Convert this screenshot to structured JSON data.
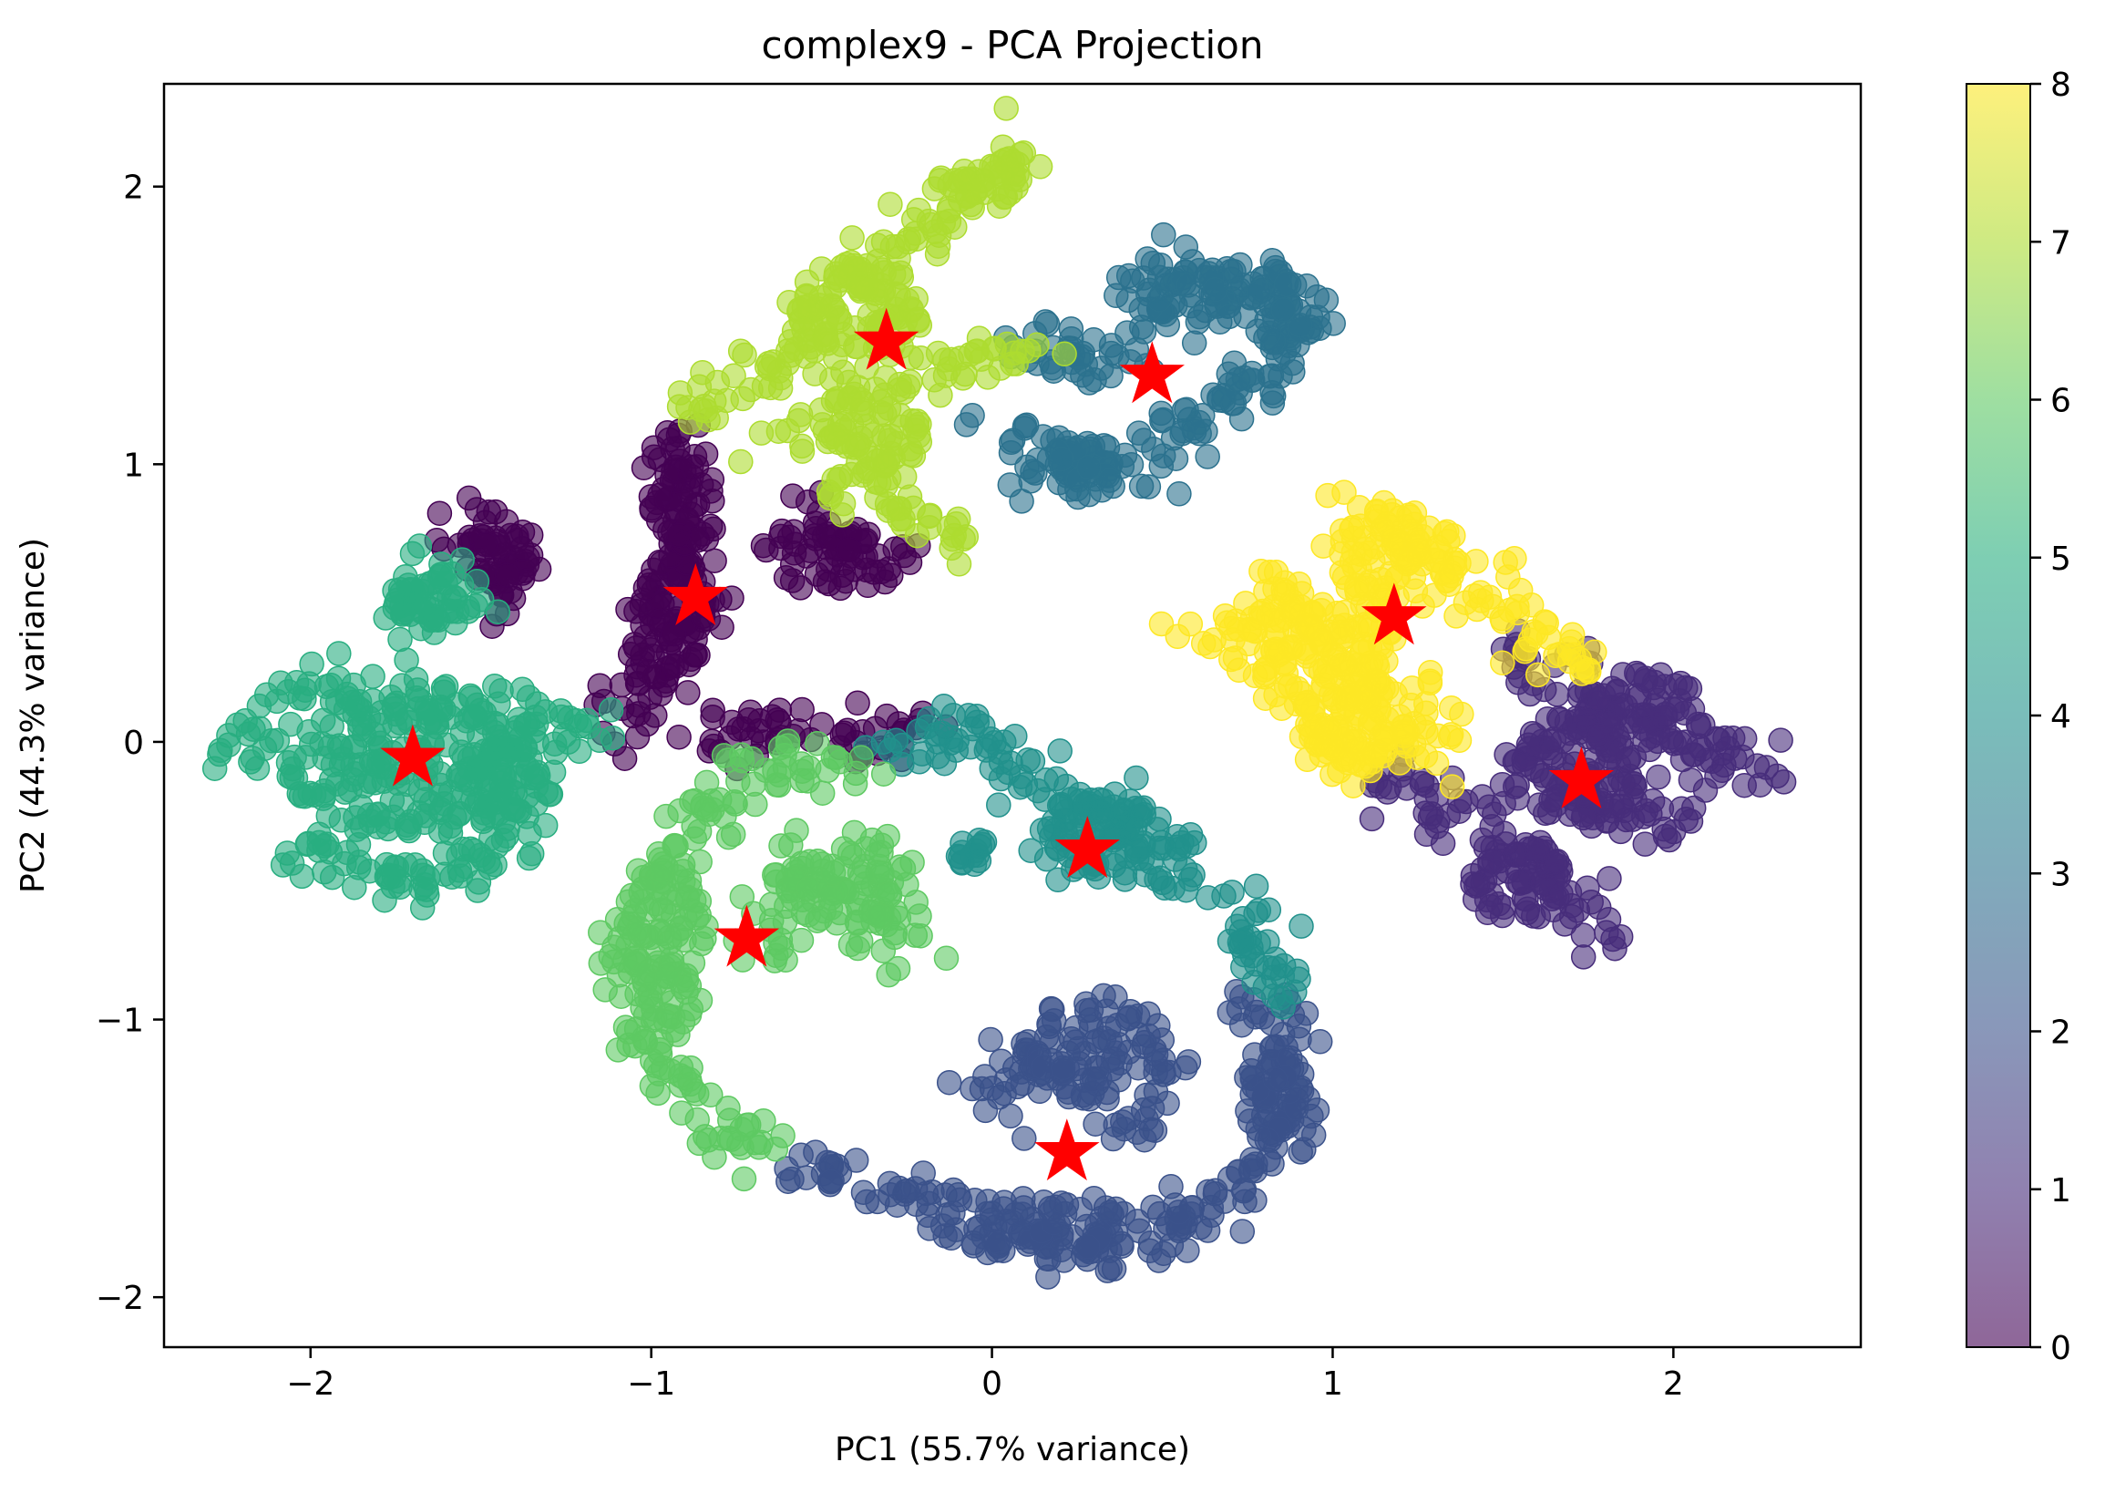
{
  "chart_data": {
    "type": "scatter",
    "title": "complex9 - PCA Projection",
    "xlabel": "PC1 (55.7% variance)",
    "ylabel": "PC2 (44.3% variance)",
    "xlim": [
      -2.43,
      2.55
    ],
    "ylim": [
      -2.18,
      2.37
    ],
    "xticks": [
      -2,
      -1,
      0,
      1,
      2
    ],
    "xtick_labels": [
      "−2",
      "−1",
      "0",
      "1",
      "2"
    ],
    "yticks": [
      -2,
      -1,
      0,
      1,
      2
    ],
    "ytick_labels": [
      "−2",
      "−1",
      "0",
      "1",
      "2"
    ],
    "grid": false,
    "legend": "none",
    "marker_alpha": 0.6,
    "colormap": "viridis",
    "colorbar": {
      "range": [
        0,
        8
      ],
      "ticks": [
        0,
        1,
        2,
        3,
        4,
        5,
        6,
        7,
        8
      ],
      "tick_labels": [
        "0",
        "1",
        "2",
        "3",
        "4",
        "5",
        "6",
        "7",
        "8"
      ],
      "colors": [
        "#440154",
        "#472d7b",
        "#3b528b",
        "#2c728e",
        "#21918c",
        "#28ae80",
        "#5ec962",
        "#addc30",
        "#fde725"
      ]
    },
    "clusters": [
      {
        "label": 0,
        "color": "#440154",
        "polylines": [
          [
            [
              -0.95,
              1.15
            ],
            [
              -0.9,
              0.95
            ],
            [
              -0.92,
              0.75
            ],
            [
              -0.88,
              0.55
            ],
            [
              -0.95,
              0.35
            ],
            [
              -1.05,
              0.15
            ],
            [
              -1.08,
              0.0
            ]
          ],
          [
            [
              -1.6,
              0.72
            ],
            [
              -1.5,
              0.78
            ],
            [
              -1.38,
              0.7
            ],
            [
              -1.4,
              0.55
            ],
            [
              -1.45,
              0.5
            ]
          ],
          [
            [
              -0.52,
              0.82
            ],
            [
              -0.55,
              0.7
            ],
            [
              -0.6,
              0.65
            ],
            [
              -0.5,
              0.62
            ],
            [
              -0.35,
              0.62
            ],
            [
              -0.2,
              0.66
            ]
          ],
          [
            [
              -0.85,
              -0.02
            ],
            [
              -0.7,
              0.02
            ],
            [
              -0.5,
              0.06
            ],
            [
              -0.3,
              0.04
            ],
            [
              -0.2,
              0.0
            ]
          ]
        ],
        "blobs": [
          [
            -0.95,
            0.45,
            0.12,
            0.25
          ],
          [
            -0.9,
            0.85,
            0.1,
            0.15
          ],
          [
            -1.45,
            0.66,
            0.1,
            0.1
          ],
          [
            -0.45,
            0.72,
            0.08,
            0.07
          ]
        ]
      },
      {
        "label": 1,
        "color": "#472d7b",
        "polylines": [
          [
            [
              1.12,
              -0.12
            ],
            [
              1.25,
              -0.2
            ],
            [
              1.4,
              -0.3
            ],
            [
              1.55,
              -0.4
            ],
            [
              1.7,
              -0.55
            ],
            [
              1.82,
              -0.68
            ]
          ],
          [
            [
              1.5,
              0.3
            ],
            [
              1.65,
              0.25
            ],
            [
              1.85,
              0.12
            ],
            [
              2.0,
              0.0
            ],
            [
              2.15,
              -0.12
            ],
            [
              2.3,
              -0.08
            ]
          ],
          [
            [
              1.6,
              -0.15
            ],
            [
              1.75,
              -0.22
            ],
            [
              1.9,
              -0.28
            ],
            [
              2.05,
              -0.3
            ]
          ]
        ],
        "blobs": [
          [
            1.7,
            -0.1,
            0.2,
            0.2
          ],
          [
            1.9,
            0.1,
            0.2,
            0.15
          ],
          [
            1.55,
            -0.5,
            0.15,
            0.15
          ]
        ]
      },
      {
        "label": 2,
        "color": "#3b528b",
        "polylines": [
          [
            [
              -0.55,
              -1.5
            ],
            [
              -0.35,
              -1.62
            ],
            [
              -0.1,
              -1.72
            ],
            [
              0.15,
              -1.8
            ],
            [
              0.4,
              -1.82
            ],
            [
              0.6,
              -1.72
            ],
            [
              0.78,
              -1.55
            ],
            [
              0.88,
              -1.3
            ],
            [
              0.86,
              -1.05
            ],
            [
              0.72,
              -0.92
            ]
          ],
          [
            [
              0.0,
              -1.35
            ],
            [
              0.05,
              -1.2
            ],
            [
              0.15,
              -1.05
            ],
            [
              0.3,
              -1.0
            ],
            [
              0.45,
              -1.02
            ],
            [
              0.5,
              -1.15
            ],
            [
              0.42,
              -1.3
            ],
            [
              0.38,
              -1.42
            ]
          ]
        ],
        "blobs": [
          [
            0.25,
            -1.18,
            0.15,
            0.12
          ],
          [
            0.2,
            -1.75,
            0.25,
            0.12
          ],
          [
            0.82,
            -1.25,
            0.08,
            0.2
          ]
        ]
      },
      {
        "label": 3,
        "color": "#2c728e",
        "polylines": [
          [
            [
              0.05,
              1.45
            ],
            [
              0.2,
              1.35
            ],
            [
              0.35,
              1.4
            ],
            [
              0.5,
              1.5
            ]
          ],
          [
            [
              0.4,
              1.65
            ],
            [
              0.6,
              1.72
            ],
            [
              0.78,
              1.68
            ],
            [
              0.9,
              1.5
            ],
            [
              0.78,
              1.3
            ],
            [
              0.6,
              1.18
            ],
            [
              0.42,
              1.0
            ],
            [
              0.2,
              0.95
            ],
            [
              0.05,
              1.05
            ],
            [
              0.05,
              1.15
            ]
          ]
        ],
        "blobs": [
          [
            0.6,
            1.6,
            0.15,
            0.1
          ],
          [
            0.25,
            1.0,
            0.15,
            0.08
          ],
          [
            0.85,
            1.55,
            0.1,
            0.15
          ]
        ]
      },
      {
        "label": 4,
        "color": "#21918c",
        "polylines": [
          [
            [
              -0.35,
              0.02
            ],
            [
              -0.1,
              0.0
            ],
            [
              0.1,
              -0.1
            ],
            [
              0.3,
              -0.25
            ],
            [
              0.5,
              -0.42
            ],
            [
              0.68,
              -0.6
            ],
            [
              0.8,
              -0.78
            ],
            [
              0.88,
              -0.92
            ]
          ]
        ],
        "blobs": [
          [
            0.3,
            -0.35,
            0.2,
            0.18
          ],
          [
            -0.05,
            -0.4,
            0.06,
            0.05
          ]
        ]
      },
      {
        "label": 5,
        "color": "#28ae80",
        "polylines": [
          [
            [
              -2.2,
              -0.08
            ],
            [
              -2.05,
              0.15
            ],
            [
              -1.85,
              0.18
            ],
            [
              -1.65,
              0.15
            ],
            [
              -1.45,
              0.12
            ],
            [
              -1.25,
              0.05
            ],
            [
              -1.15,
              -0.02
            ]
          ],
          [
            [
              -2.05,
              -0.35
            ],
            [
              -1.9,
              -0.48
            ],
            [
              -1.7,
              -0.5
            ],
            [
              -1.5,
              -0.45
            ],
            [
              -1.35,
              -0.3
            ]
          ],
          [
            [
              -1.75,
              0.42
            ],
            [
              -1.7,
              0.55
            ],
            [
              -1.6,
              0.62
            ],
            [
              -1.52,
              0.5
            ]
          ]
        ],
        "blobs": [
          [
            -1.72,
            -0.1,
            0.35,
            0.25
          ],
          [
            -1.4,
            -0.12,
            0.12,
            0.18
          ],
          [
            -1.65,
            0.48,
            0.1,
            0.1
          ]
        ]
      },
      {
        "label": 6,
        "color": "#5ec962",
        "polylines": [
          [
            [
              -0.4,
              -0.1
            ],
            [
              -0.6,
              -0.1
            ],
            [
              -0.8,
              -0.2
            ],
            [
              -0.95,
              -0.4
            ],
            [
              -1.05,
              -0.65
            ],
            [
              -1.05,
              -0.9
            ],
            [
              -0.95,
              -1.15
            ],
            [
              -0.82,
              -1.35
            ],
            [
              -0.65,
              -1.5
            ]
          ],
          [
            [
              -0.62,
              -0.75
            ],
            [
              -0.65,
              -0.6
            ],
            [
              -0.55,
              -0.45
            ],
            [
              -0.4,
              -0.4
            ],
            [
              -0.28,
              -0.5
            ],
            [
              -0.25,
              -0.65
            ],
            [
              -0.35,
              -0.75
            ]
          ]
        ],
        "blobs": [
          [
            -0.45,
            -0.55,
            0.15,
            0.15
          ],
          [
            -0.95,
            -0.75,
            0.12,
            0.3
          ]
        ]
      },
      {
        "label": 7,
        "color": "#addc30",
        "polylines": [
          [
            [
              -0.9,
              1.2
            ],
            [
              -0.75,
              1.3
            ],
            [
              -0.6,
              1.4
            ],
            [
              -0.45,
              1.58
            ],
            [
              -0.3,
              1.75
            ],
            [
              -0.15,
              1.9
            ],
            [
              0.0,
              2.05
            ],
            [
              0.12,
              2.12
            ]
          ],
          [
            [
              -0.6,
              1.05
            ],
            [
              -0.5,
              1.15
            ],
            [
              -0.4,
              1.25
            ],
            [
              -0.3,
              1.3
            ],
            [
              -0.15,
              1.35
            ],
            [
              0.0,
              1.38
            ],
            [
              0.1,
              1.45
            ]
          ],
          [
            [
              -0.45,
              0.85
            ],
            [
              -0.4,
              0.95
            ],
            [
              -0.3,
              0.9
            ],
            [
              -0.2,
              0.8
            ],
            [
              -0.1,
              0.72
            ]
          ]
        ],
        "blobs": [
          [
            -0.4,
            1.55,
            0.2,
            0.18
          ],
          [
            -0.35,
            1.1,
            0.15,
            0.12
          ],
          [
            0.0,
            2.0,
            0.12,
            0.08
          ]
        ]
      },
      {
        "label": 8,
        "color": "#fde725",
        "polylines": [
          [
            [
              1.02,
              0.85
            ],
            [
              1.2,
              0.75
            ],
            [
              1.35,
              0.62
            ],
            [
              1.5,
              0.48
            ],
            [
              1.62,
              0.35
            ],
            [
              1.75,
              0.25
            ]
          ],
          [
            [
              0.58,
              0.38
            ],
            [
              0.75,
              0.45
            ],
            [
              0.9,
              0.55
            ],
            [
              0.92,
              0.35
            ],
            [
              1.05,
              0.28
            ],
            [
              1.18,
              0.15
            ],
            [
              1.3,
              0.05
            ],
            [
              1.38,
              -0.02
            ]
          ],
          [
            [
              1.0,
              -0.05
            ],
            [
              0.95,
              0.1
            ],
            [
              1.05,
              0.15
            ],
            [
              1.15,
              0.0
            ],
            [
              1.0,
              -0.12
            ]
          ]
        ],
        "blobs": [
          [
            1.2,
            0.65,
            0.18,
            0.2
          ],
          [
            0.95,
            0.3,
            0.25,
            0.2
          ],
          [
            1.05,
            0.0,
            0.12,
            0.1
          ]
        ]
      }
    ],
    "centroids": [
      {
        "label": 0,
        "x": -0.87,
        "y": 0.52
      },
      {
        "label": 1,
        "x": 1.73,
        "y": -0.14
      },
      {
        "label": 2,
        "x": 0.22,
        "y": -1.48
      },
      {
        "label": 3,
        "x": 0.47,
        "y": 1.32
      },
      {
        "label": 4,
        "x": 0.28,
        "y": -0.39
      },
      {
        "label": 5,
        "x": -1.7,
        "y": -0.06
      },
      {
        "label": 6,
        "x": -0.72,
        "y": -0.71
      },
      {
        "label": 7,
        "x": -0.31,
        "y": 1.44
      },
      {
        "label": 8,
        "x": 1.18,
        "y": 0.45
      }
    ],
    "centroid_color": "#ff0000",
    "centroid_marker": "star"
  }
}
